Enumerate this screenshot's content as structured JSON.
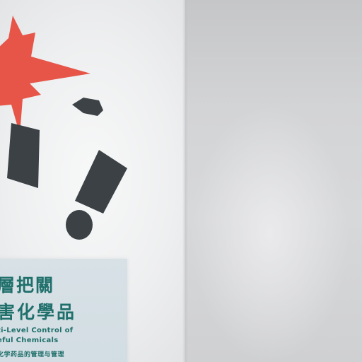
{
  "scene": {
    "description_colors": {
      "burst": "#e75a4c",
      "exclamation": "#3b4045",
      "sign_text": "#1f6f6b",
      "sign_bg": "#d4dfe4"
    }
  },
  "sign": {
    "title_line_1": "層把關",
    "title_line_2": "害化學品",
    "subtitle_line_1": "ti-Level Control of",
    "subtitle_line_2": "eful Chemicals",
    "caption": "化学药品的管理与管理"
  }
}
